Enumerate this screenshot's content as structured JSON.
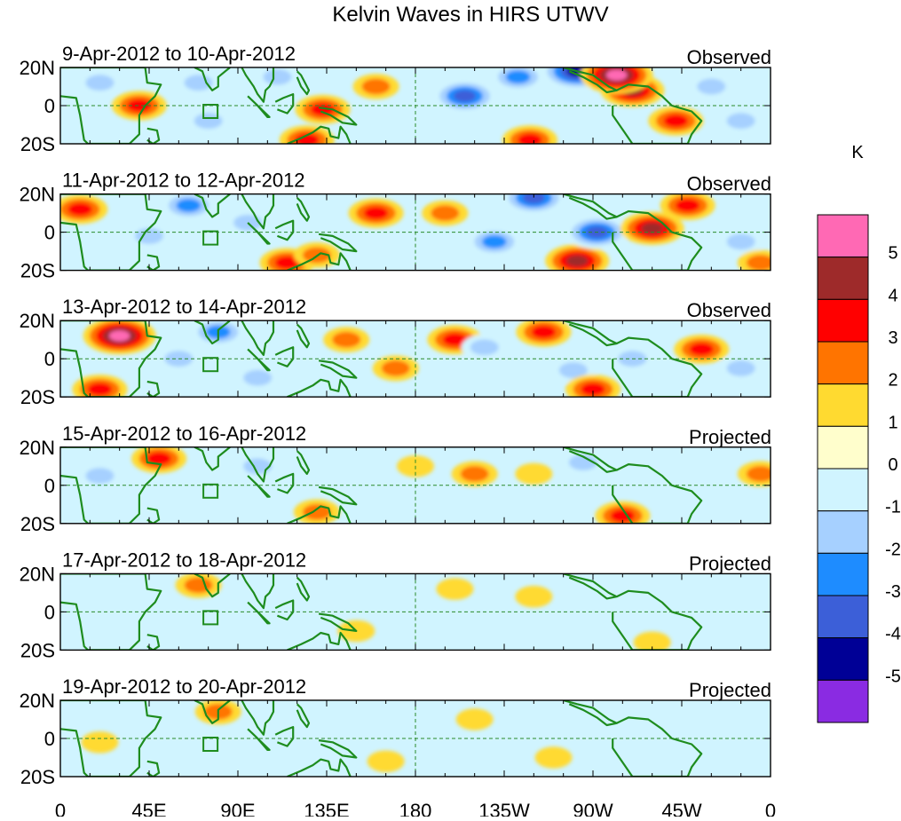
{
  "title": "Kelvin Waves in HIRS UTWV",
  "colorbar": {
    "unit": "K",
    "levels": [
      "5",
      "4",
      "3",
      "2",
      "1",
      "0",
      "-1",
      "-2",
      "-3",
      "-4",
      "-5"
    ],
    "colors": [
      "#ff69b4",
      "#9e2a2a",
      "#ff0000",
      "#ff7400",
      "#ffda30",
      "#fffecc",
      "#d0f4ff",
      "#a6d0ff",
      "#1e8cff",
      "#3c5fd8",
      "#000096",
      "#8a2be2"
    ]
  },
  "axes": {
    "x_ticks": [
      "0",
      "45E",
      "90E",
      "135E",
      "180",
      "135W",
      "90W",
      "45W",
      "0"
    ],
    "y_ticks": [
      "20N",
      "0",
      "20S"
    ]
  },
  "panels": [
    {
      "date_range": "9-Apr-2012 to 10-Apr-2012",
      "status": "Observed",
      "anomalies": [
        {
          "lon": 40,
          "lat": 0,
          "value": 3
        },
        {
          "lon": 20,
          "lat": 12,
          "value": -2
        },
        {
          "lon": 70,
          "lat": 12,
          "value": -2
        },
        {
          "lon": 75,
          "lat": -8,
          "value": -2
        },
        {
          "lon": 110,
          "lat": 15,
          "value": -2
        },
        {
          "lon": 133,
          "lat": -2,
          "value": 3
        },
        {
          "lon": 125,
          "lat": -18,
          "value": 3
        },
        {
          "lon": 160,
          "lat": 10,
          "value": 2
        },
        {
          "lon": 205,
          "lat": 5,
          "value": -4
        },
        {
          "lon": 232,
          "lat": 15,
          "value": -3
        },
        {
          "lon": 262,
          "lat": 18,
          "value": -5
        },
        {
          "lon": 238,
          "lat": -18,
          "value": 3
        },
        {
          "lon": 290,
          "lat": 8,
          "value": 4
        },
        {
          "lon": 282,
          "lat": 16,
          "value": 5
        },
        {
          "lon": 312,
          "lat": -8,
          "value": 3
        },
        {
          "lon": 330,
          "lat": 10,
          "value": -2
        },
        {
          "lon": 345,
          "lat": -8,
          "value": -2
        }
      ]
    },
    {
      "date_range": "11-Apr-2012 to 12-Apr-2012",
      "status": "Observed",
      "anomalies": [
        {
          "lon": 10,
          "lat": 12,
          "value": 3
        },
        {
          "lon": 45,
          "lat": -2,
          "value": -2
        },
        {
          "lon": 65,
          "lat": 14,
          "value": -3
        },
        {
          "lon": 95,
          "lat": 5,
          "value": -2
        },
        {
          "lon": 115,
          "lat": -16,
          "value": 3
        },
        {
          "lon": 130,
          "lat": -12,
          "value": 2
        },
        {
          "lon": 160,
          "lat": 10,
          "value": 3
        },
        {
          "lon": 195,
          "lat": 10,
          "value": 2
        },
        {
          "lon": 220,
          "lat": -5,
          "value": -3
        },
        {
          "lon": 240,
          "lat": 18,
          "value": -4
        },
        {
          "lon": 262,
          "lat": -15,
          "value": 4
        },
        {
          "lon": 272,
          "lat": 0,
          "value": -4
        },
        {
          "lon": 300,
          "lat": 2,
          "value": 4
        },
        {
          "lon": 318,
          "lat": 14,
          "value": 3
        },
        {
          "lon": 345,
          "lat": -5,
          "value": -2
        },
        {
          "lon": 355,
          "lat": -16,
          "value": 2
        }
      ]
    },
    {
      "date_range": "13-Apr-2012 to 14-Apr-2012",
      "status": "Observed",
      "anomalies": [
        {
          "lon": 30,
          "lat": 12,
          "value": 5
        },
        {
          "lon": 20,
          "lat": -16,
          "value": 3
        },
        {
          "lon": 60,
          "lat": 0,
          "value": -2
        },
        {
          "lon": 80,
          "lat": 14,
          "value": -3
        },
        {
          "lon": 100,
          "lat": -10,
          "value": -2
        },
        {
          "lon": 145,
          "lat": 10,
          "value": 2
        },
        {
          "lon": 170,
          "lat": -5,
          "value": 2
        },
        {
          "lon": 200,
          "lat": 10,
          "value": 3
        },
        {
          "lon": 215,
          "lat": 6,
          "value": -2
        },
        {
          "lon": 245,
          "lat": 14,
          "value": 3
        },
        {
          "lon": 260,
          "lat": -6,
          "value": -2
        },
        {
          "lon": 270,
          "lat": -16,
          "value": 3
        },
        {
          "lon": 290,
          "lat": 0,
          "value": -2
        },
        {
          "lon": 325,
          "lat": 5,
          "value": 3
        },
        {
          "lon": 345,
          "lat": -5,
          "value": -2
        }
      ]
    },
    {
      "date_range": "15-Apr-2012 to 16-Apr-2012",
      "status": "Projected",
      "anomalies": [
        {
          "lon": 50,
          "lat": 14,
          "value": 3
        },
        {
          "lon": 20,
          "lat": 5,
          "value": -2
        },
        {
          "lon": 100,
          "lat": 10,
          "value": -2
        },
        {
          "lon": 130,
          "lat": -14,
          "value": 2
        },
        {
          "lon": 145,
          "lat": 2,
          "value": -1
        },
        {
          "lon": 180,
          "lat": 10,
          "value": 1
        },
        {
          "lon": 210,
          "lat": 6,
          "value": 2
        },
        {
          "lon": 240,
          "lat": 6,
          "value": 1
        },
        {
          "lon": 265,
          "lat": 12,
          "value": -2
        },
        {
          "lon": 285,
          "lat": -16,
          "value": 3
        },
        {
          "lon": 320,
          "lat": 10,
          "value": -1
        },
        {
          "lon": 355,
          "lat": 6,
          "value": 2
        }
      ]
    },
    {
      "date_range": "17-Apr-2012 to 18-Apr-2012",
      "status": "Projected",
      "anomalies": [
        {
          "lon": 70,
          "lat": 14,
          "value": 2
        },
        {
          "lon": 30,
          "lat": -6,
          "value": -1
        },
        {
          "lon": 110,
          "lat": 10,
          "value": -1
        },
        {
          "lon": 150,
          "lat": -10,
          "value": 1
        },
        {
          "lon": 200,
          "lat": 12,
          "value": 1
        },
        {
          "lon": 240,
          "lat": 8,
          "value": 1
        },
        {
          "lon": 270,
          "lat": -4,
          "value": -1
        },
        {
          "lon": 300,
          "lat": -16,
          "value": 1
        },
        {
          "lon": 330,
          "lat": 10,
          "value": -1
        }
      ]
    },
    {
      "date_range": "19-Apr-2012 to 20-Apr-2012",
      "status": "Projected",
      "anomalies": [
        {
          "lon": 80,
          "lat": 14,
          "value": 2
        },
        {
          "lon": 20,
          "lat": -2,
          "value": 1
        },
        {
          "lon": 120,
          "lat": 5,
          "value": -1
        },
        {
          "lon": 165,
          "lat": -12,
          "value": 1
        },
        {
          "lon": 210,
          "lat": 10,
          "value": 1
        },
        {
          "lon": 250,
          "lat": -10,
          "value": 1
        },
        {
          "lon": 290,
          "lat": -6,
          "value": -1
        },
        {
          "lon": 330,
          "lat": 14,
          "value": -1
        }
      ]
    }
  ]
}
